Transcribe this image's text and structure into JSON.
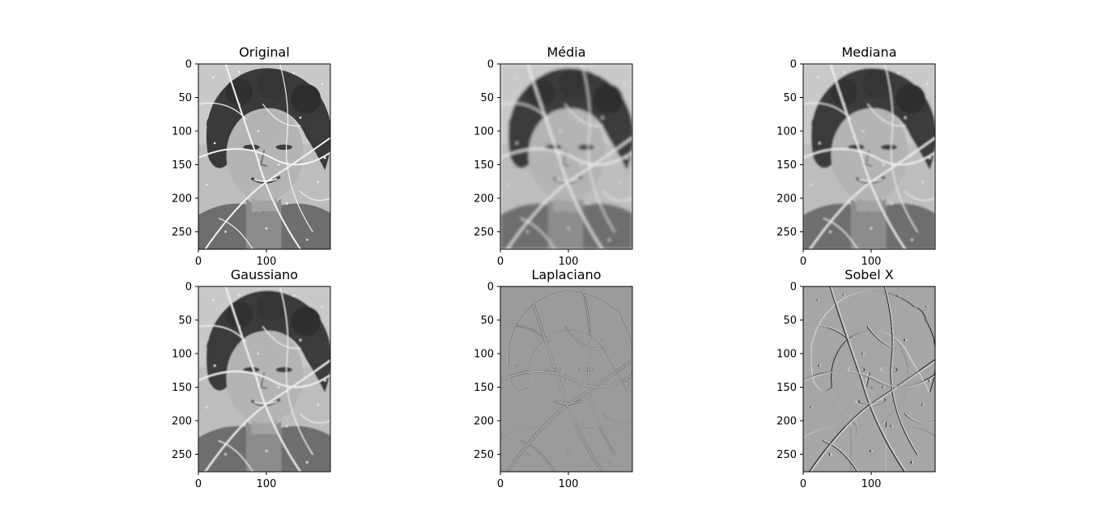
{
  "chart_data": [
    {
      "type": "image",
      "title": "Original",
      "render": "original",
      "xlim": [
        0,
        194
      ],
      "ylim": [
        276,
        0
      ],
      "xticks": [
        0,
        100
      ],
      "yticks": [
        0,
        50,
        100,
        150,
        200,
        250
      ],
      "colormap": "gray",
      "grid": false
    },
    {
      "type": "image",
      "title": "Média",
      "render": "blur",
      "xlim": [
        0,
        194
      ],
      "ylim": [
        276,
        0
      ],
      "xticks": [
        0,
        100
      ],
      "yticks": [
        0,
        50,
        100,
        150,
        200,
        250
      ],
      "colormap": "gray",
      "grid": false
    },
    {
      "type": "image",
      "title": "Mediana",
      "render": "median",
      "xlim": [
        0,
        194
      ],
      "ylim": [
        276,
        0
      ],
      "xticks": [
        0,
        100
      ],
      "yticks": [
        0,
        50,
        100,
        150,
        200,
        250
      ],
      "colormap": "gray",
      "grid": false
    },
    {
      "type": "image",
      "title": "Gaussiano",
      "render": "gauss",
      "xlim": [
        0,
        194
      ],
      "ylim": [
        276,
        0
      ],
      "xticks": [
        0,
        100
      ],
      "yticks": [
        0,
        50,
        100,
        150,
        200,
        250
      ],
      "colormap": "gray",
      "grid": false
    },
    {
      "type": "image",
      "title": "Laplaciano",
      "render": "laplace",
      "xlim": [
        0,
        194
      ],
      "ylim": [
        276,
        0
      ],
      "xticks": [
        0,
        100
      ],
      "yticks": [
        0,
        50,
        100,
        150,
        200,
        250
      ],
      "colormap": "gray",
      "grid": false
    },
    {
      "type": "image",
      "title": "Sobel X",
      "render": "sobel",
      "xlim": [
        0,
        194
      ],
      "ylim": [
        276,
        0
      ],
      "xticks": [
        0,
        100
      ],
      "yticks": [
        0,
        50,
        100,
        150,
        200,
        250
      ],
      "colormap": "gray",
      "grid": false
    }
  ]
}
